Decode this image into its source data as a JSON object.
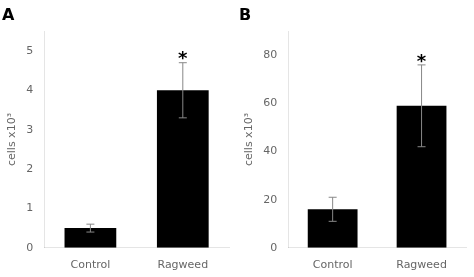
{
  "chart_data": [
    {
      "type": "bar",
      "title": "A",
      "y_label": "cells x10³",
      "categories": [
        "Control",
        "Ragweed"
      ],
      "values": [
        0.5,
        4.0
      ],
      "errors": [
        0.1,
        0.7
      ],
      "color": "#000000",
      "ylim": [
        0,
        5.5
      ],
      "yticks": [
        0,
        1,
        2,
        3,
        4,
        5
      ],
      "grid": false,
      "annotations": [
        {
          "text": "*",
          "category": "Ragweed"
        }
      ]
    },
    {
      "type": "bar",
      "title": "B",
      "y_label": "cells x10³",
      "categories": [
        "Control",
        "Ragweed"
      ],
      "values": [
        16,
        59
      ],
      "errors": [
        5,
        17
      ],
      "color": "#000000",
      "ylim": [
        0,
        90
      ],
      "yticks": [
        0,
        20,
        40,
        60,
        80
      ],
      "grid": false,
      "annotations": [
        {
          "text": "*",
          "category": "Ragweed"
        }
      ]
    }
  ]
}
